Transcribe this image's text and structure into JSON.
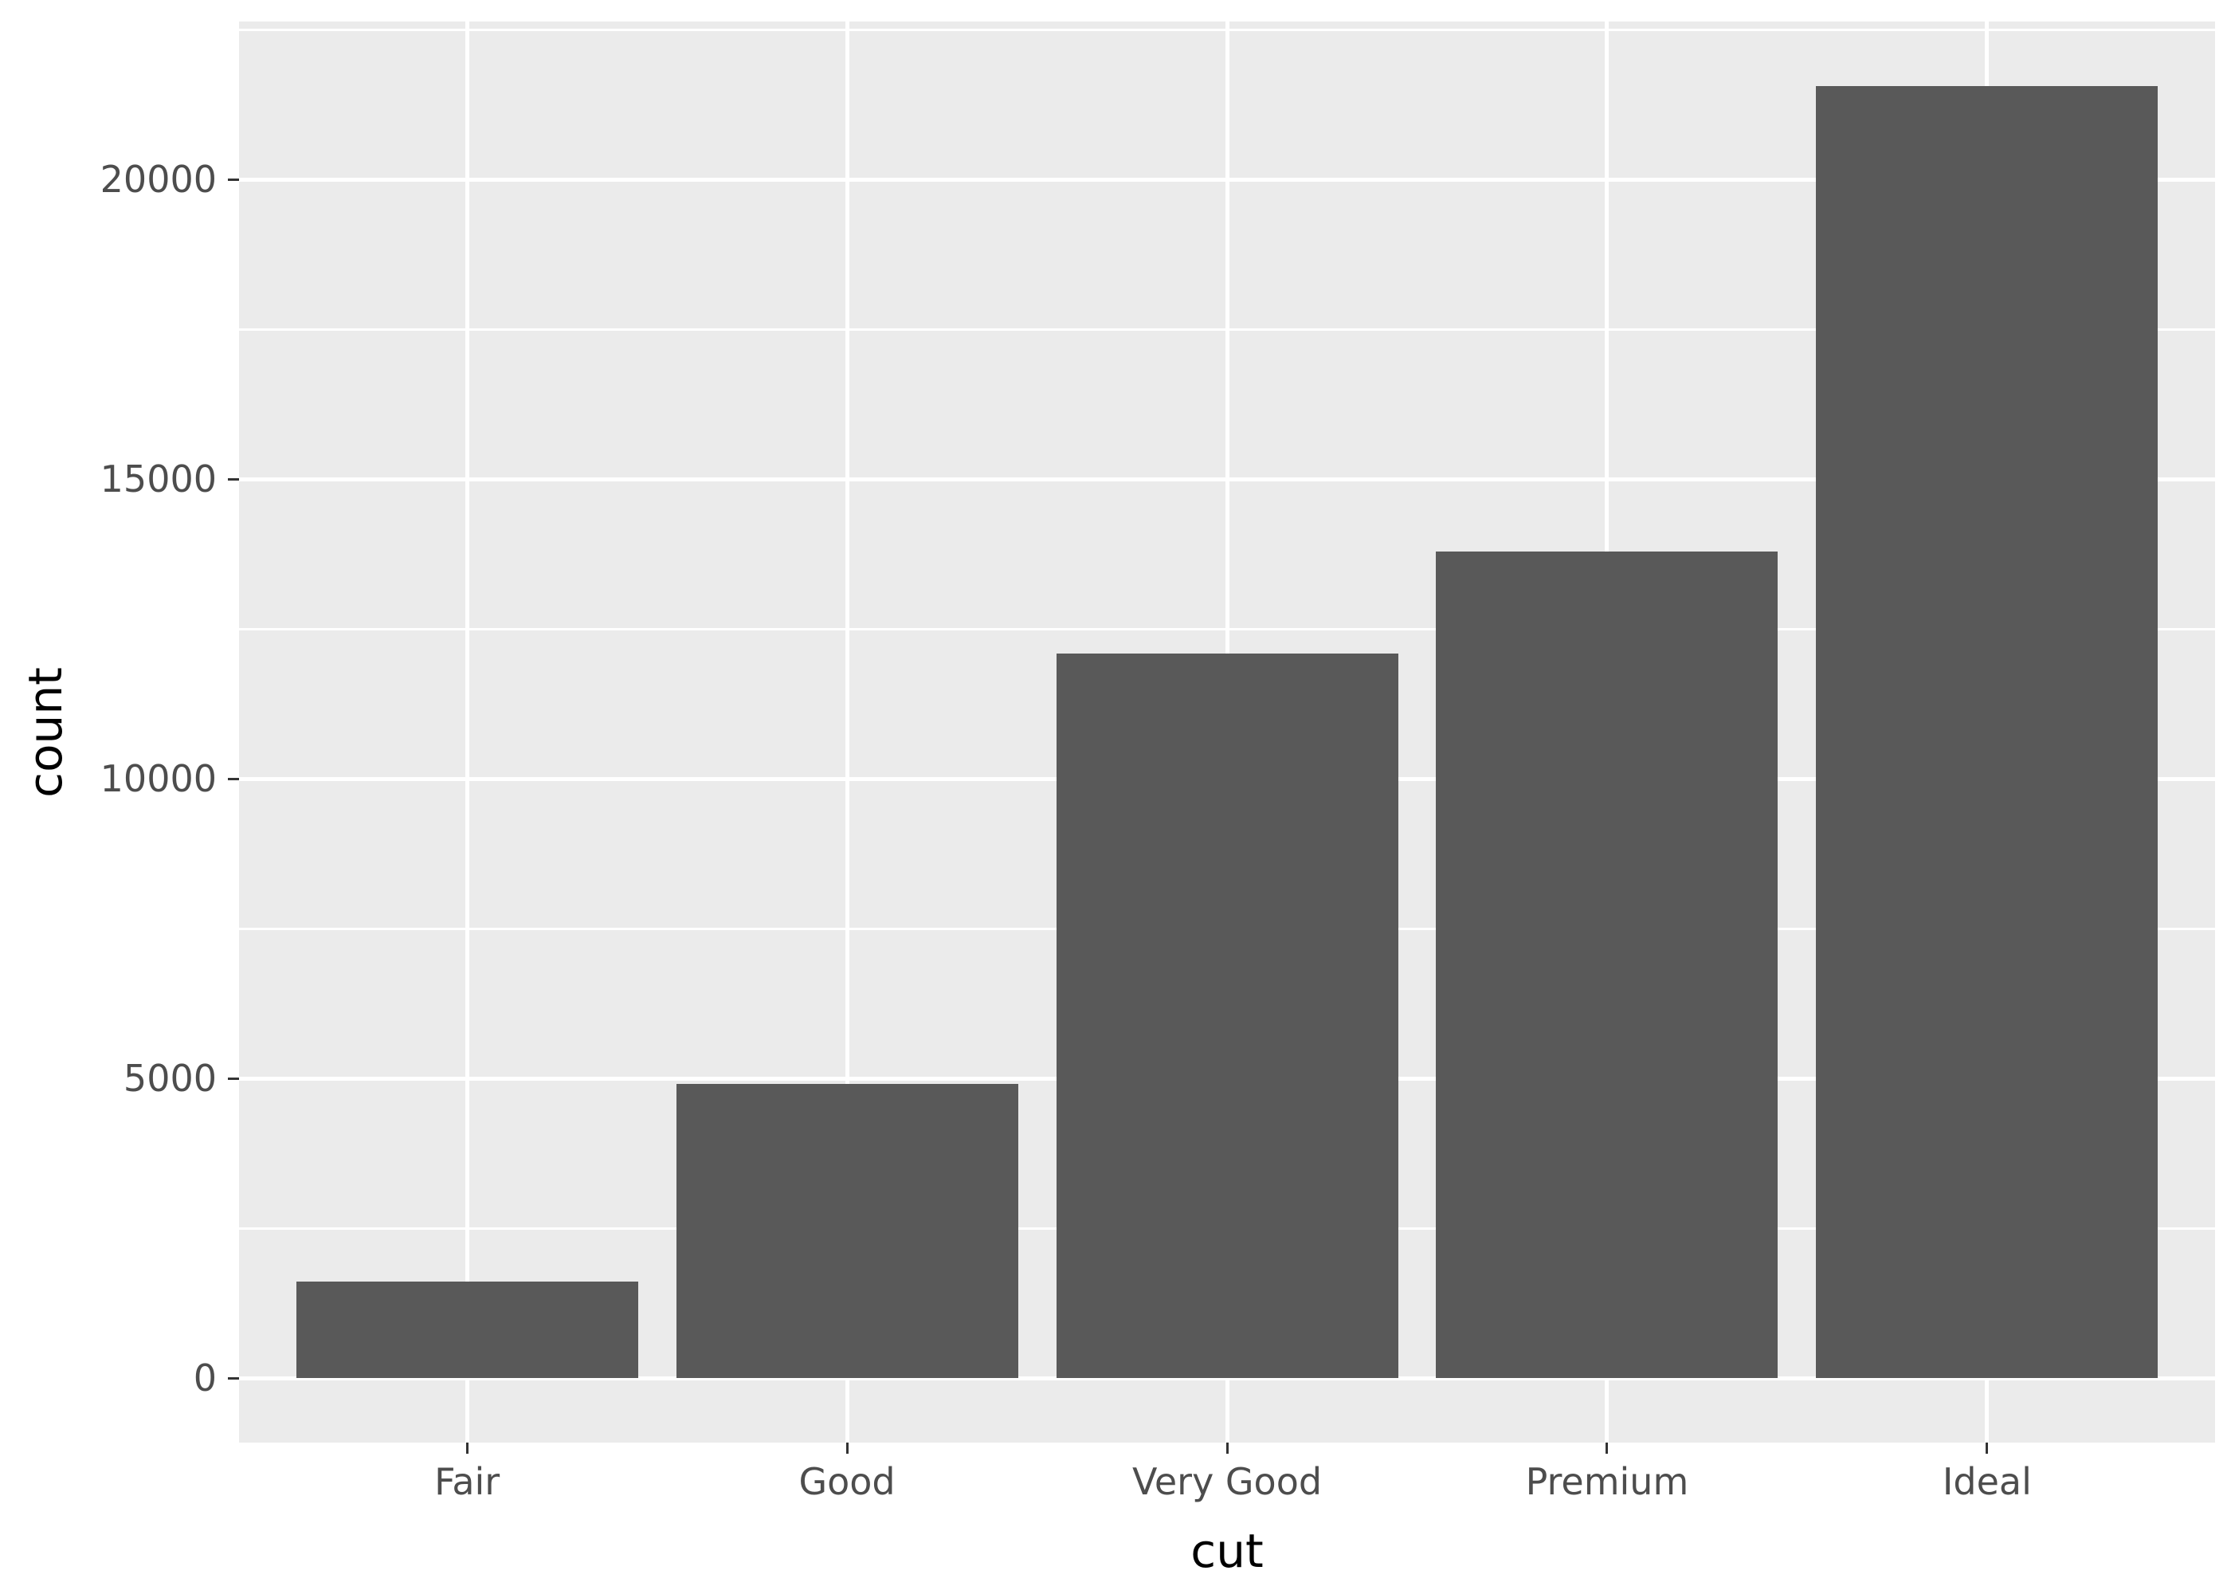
{
  "figure": {
    "background": "#FFFFFF"
  },
  "chart_data": {
    "type": "bar",
    "title": "",
    "xlabel": "cut",
    "ylabel": "count",
    "categories": [
      "Fair",
      "Good",
      "Very Good",
      "Premium",
      "Ideal"
    ],
    "values": [
      1610,
      4906,
      12082,
      13791,
      21551
    ],
    "y_ticks": [
      0,
      5000,
      10000,
      15000,
      20000
    ],
    "y_minor_gridlines": [
      2500,
      7500,
      12500,
      17500,
      22500
    ],
    "ylim": [
      -1080,
      22630
    ],
    "grid": true,
    "legend": "none",
    "style": {
      "panel_background": "#EBEBEB",
      "gridline_color": "#FFFFFF",
      "bar_fill": "#595959",
      "tick_mark_color": "#333333",
      "tick_label_color": "#4D4D4D",
      "axis_title_color": "#000000"
    }
  }
}
